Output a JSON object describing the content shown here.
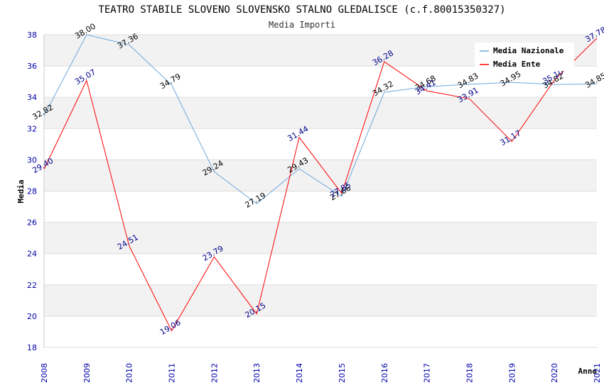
{
  "chart_data": {
    "type": "line",
    "title": "TEATRO STABILE SLOVENO SLOVENSKO STALNO GLEDALISCE (c.f.80015350327)",
    "subtitle": "Media Importi",
    "xlabel": "Anno",
    "ylabel": "Media",
    "ylim": [
      18,
      38
    ],
    "yticks": [
      18,
      20,
      22,
      24,
      26,
      28,
      30,
      32,
      34,
      36,
      38
    ],
    "x": [
      "2008",
      "2009",
      "2010",
      "2011",
      "2012",
      "2013",
      "2014",
      "2015",
      "2016",
      "2017",
      "2018",
      "2019",
      "2020",
      "2021"
    ],
    "legend_position": "top-right",
    "grid": true,
    "series": [
      {
        "name": "Media Nazionale",
        "color": "#6fa8dc",
        "values": [
          32.82,
          38.0,
          37.36,
          34.79,
          29.24,
          27.19,
          29.43,
          27.66,
          34.32,
          34.68,
          34.83,
          34.95,
          34.82,
          34.85
        ],
        "labels": [
          "32.82",
          "38.00",
          "37.36",
          "34.79",
          "29.24",
          "27.19",
          "29.43",
          "27.66",
          "34.32",
          "34.68",
          "34.83",
          "34.95",
          "34.82",
          "34.85"
        ]
      },
      {
        "name": "Media Ente",
        "color": "#ff0000",
        "values": [
          29.4,
          35.07,
          24.51,
          19.06,
          23.79,
          20.15,
          31.44,
          27.85,
          36.28,
          34.41,
          33.91,
          31.17,
          35.1,
          37.78
        ],
        "labels": [
          "29.40",
          "35.07",
          "24.51",
          "19.06",
          "23.79",
          "20.15",
          "31.44",
          "27.85",
          "36.28",
          "34.41",
          "33.91",
          "31.17",
          "35.10",
          "37.78"
        ]
      }
    ]
  }
}
